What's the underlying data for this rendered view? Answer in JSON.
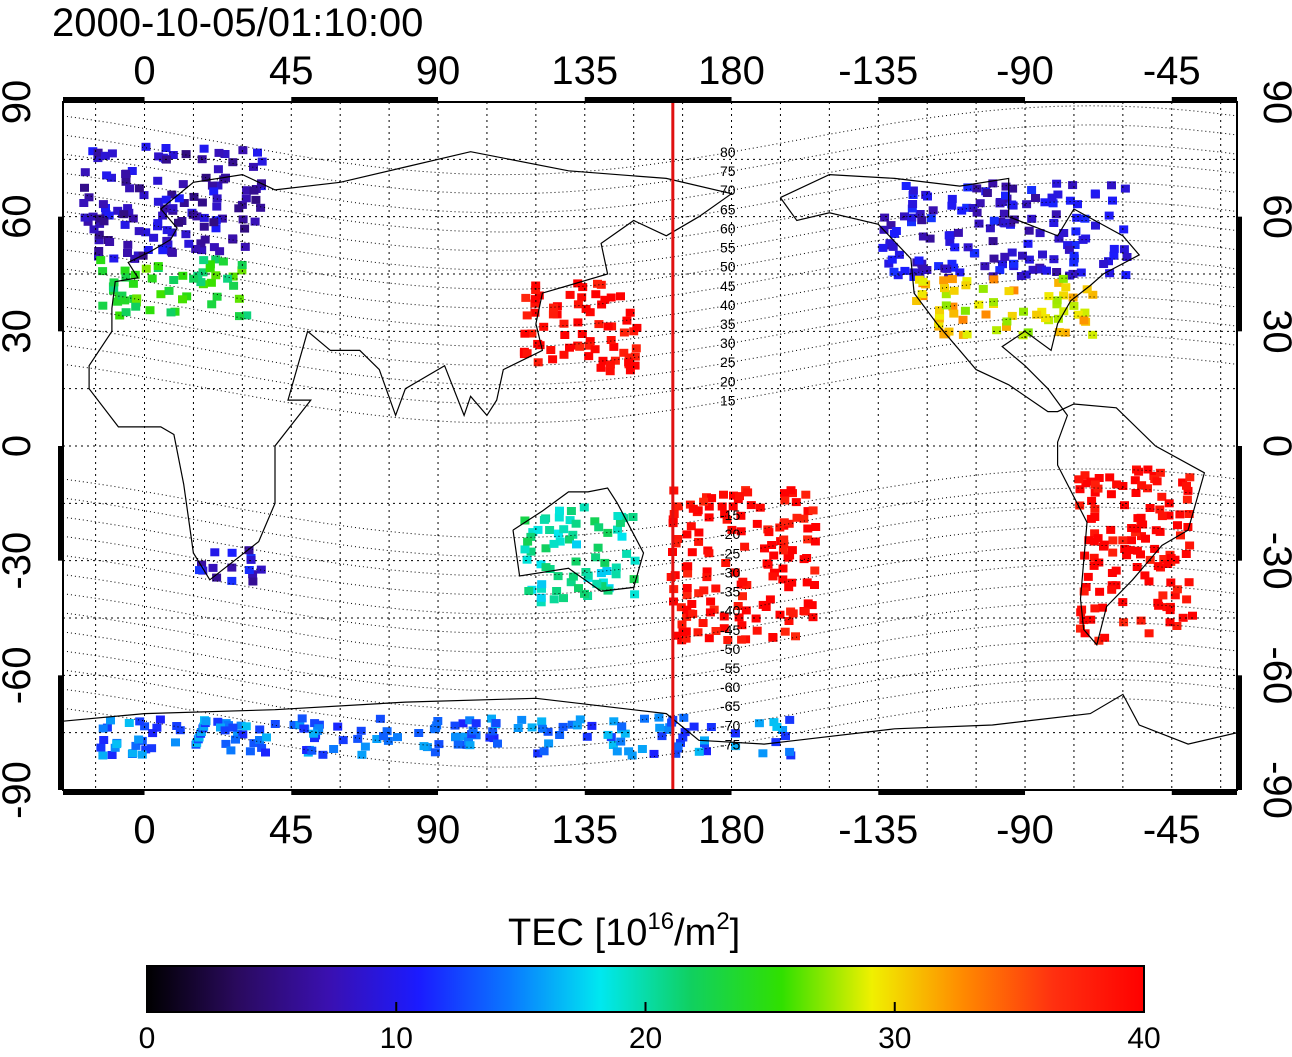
{
  "title": "2000-10-05/01:10:00",
  "map": {
    "top_longitude_labels": [
      "0",
      "45",
      "90",
      "135",
      "180",
      "-135",
      "-90",
      "-45"
    ],
    "bottom_longitude_labels": [
      "0",
      "45",
      "90",
      "135",
      "180",
      "-135",
      "-90",
      "-45"
    ],
    "left_latitude_labels": [
      "90",
      "60",
      "30",
      "0",
      "-30",
      "-60",
      "-90"
    ],
    "right_latitude_labels": [
      "90",
      "60",
      "30",
      "0",
      "-30",
      "-60",
      "-90"
    ],
    "lon_range": [
      -25,
      335
    ],
    "lat_range": [
      -90,
      90
    ],
    "grid": true,
    "marker_line_longitude": 162,
    "marker_line_color": "#e01010",
    "magnetic_latitude_labels": [
      "80",
      "75",
      "70",
      "65",
      "60",
      "55",
      "50",
      "45",
      "40",
      "35",
      "30",
      "25",
      "20",
      "15",
      "-15",
      "-20",
      "-25",
      "-30",
      "-35",
      "-40",
      "-45",
      "-50",
      "-55",
      "-60",
      "-65",
      "-70",
      "-75"
    ]
  },
  "colorbar": {
    "title_prefix": "TEC  [10",
    "title_exp1": "16",
    "title_mid": "/m",
    "title_exp2": "2",
    "title_suffix": "]",
    "tick_labels": [
      "0",
      "10",
      "20",
      "30",
      "40"
    ],
    "min": 0,
    "max": 40,
    "colors": [
      "#000000",
      "#2a0a5e",
      "#3a10b0",
      "#1b1bff",
      "#0a78ff",
      "#00e8f0",
      "#10d060",
      "#30e000",
      "#f0f000",
      "#ff8a00",
      "#ff3010",
      "#ff0000"
    ]
  },
  "tec_regions": [
    {
      "name": "europe-north",
      "lon": [
        -20,
        35
      ],
      "lat": [
        50,
        80
      ],
      "tec": 8
    },
    {
      "name": "europe-south",
      "lon": [
        -15,
        30
      ],
      "lat": [
        35,
        50
      ],
      "tec": 24
    },
    {
      "name": "east-asia",
      "lon": [
        115,
        150
      ],
      "lat": [
        20,
        45
      ],
      "tec": 40
    },
    {
      "name": "south-pacific",
      "lon": [
        160,
        205
      ],
      "lat": [
        -50,
        -10
      ],
      "tec": 40
    },
    {
      "name": "north-america-north",
      "lon": [
        -135,
        -60
      ],
      "lat": [
        45,
        70
      ],
      "tec": 9
    },
    {
      "name": "north-america-mid",
      "lon": [
        -125,
        -70
      ],
      "lat": [
        30,
        45
      ],
      "tec": 30
    },
    {
      "name": "south-america",
      "lon": [
        -75,
        -40
      ],
      "lat": [
        -50,
        -5
      ],
      "tec": 40
    },
    {
      "name": "south-africa",
      "lon": [
        15,
        35
      ],
      "lat": [
        -35,
        -25
      ],
      "tec": 9
    },
    {
      "name": "australia",
      "lon": [
        115,
        150
      ],
      "lat": [
        -40,
        -15
      ],
      "tec": 20
    },
    {
      "name": "antarctica",
      "lon": [
        -20,
        200
      ],
      "lat": [
        -80,
        -70
      ],
      "tec": 14
    }
  ]
}
